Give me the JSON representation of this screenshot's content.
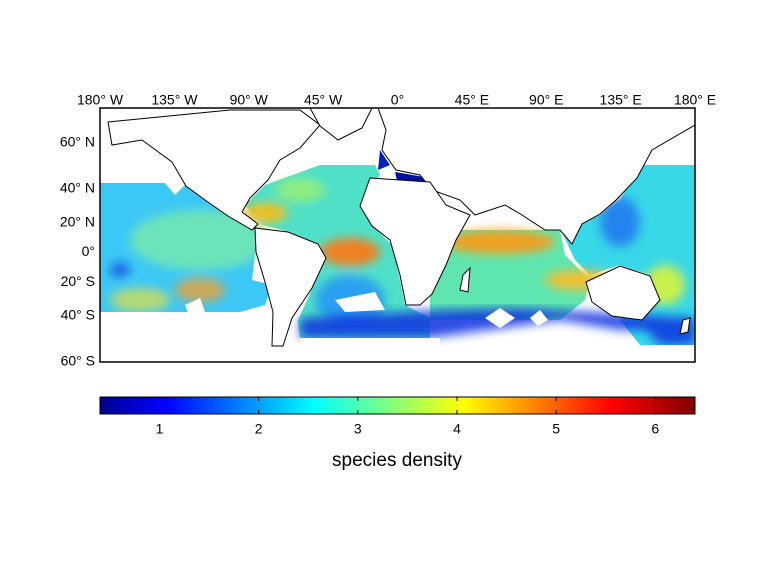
{
  "map": {
    "lonlim": [
      -180,
      180
    ],
    "latlim": [
      -60,
      70
    ],
    "lon_ticks": [
      {
        "value": -180,
        "label": "180° W"
      },
      {
        "value": -135,
        "label": "135° W"
      },
      {
        "value": -90,
        "label": "90° W"
      },
      {
        "value": -45,
        "label": "45° W"
      },
      {
        "value": 0,
        "label": "0°"
      },
      {
        "value": 45,
        "label": "45° E"
      },
      {
        "value": 90,
        "label": "90° E"
      },
      {
        "value": 135,
        "label": "135° E"
      },
      {
        "value": 180,
        "label": "180° E"
      }
    ],
    "lat_ticks": [
      {
        "value": 60,
        "label": "60° N"
      },
      {
        "value": 40,
        "label": "40° N"
      },
      {
        "value": 20,
        "label": "20° N"
      },
      {
        "value": 0,
        "label": "0°"
      },
      {
        "value": -20,
        "label": "20° S"
      },
      {
        "value": -40,
        "label": "40° S"
      },
      {
        "value": -60,
        "label": "60° S"
      }
    ]
  },
  "colorbar": {
    "label": "species density",
    "lim": [
      0.4,
      6.4
    ],
    "ticks": [
      1,
      2,
      3,
      4,
      5,
      6
    ]
  }
}
